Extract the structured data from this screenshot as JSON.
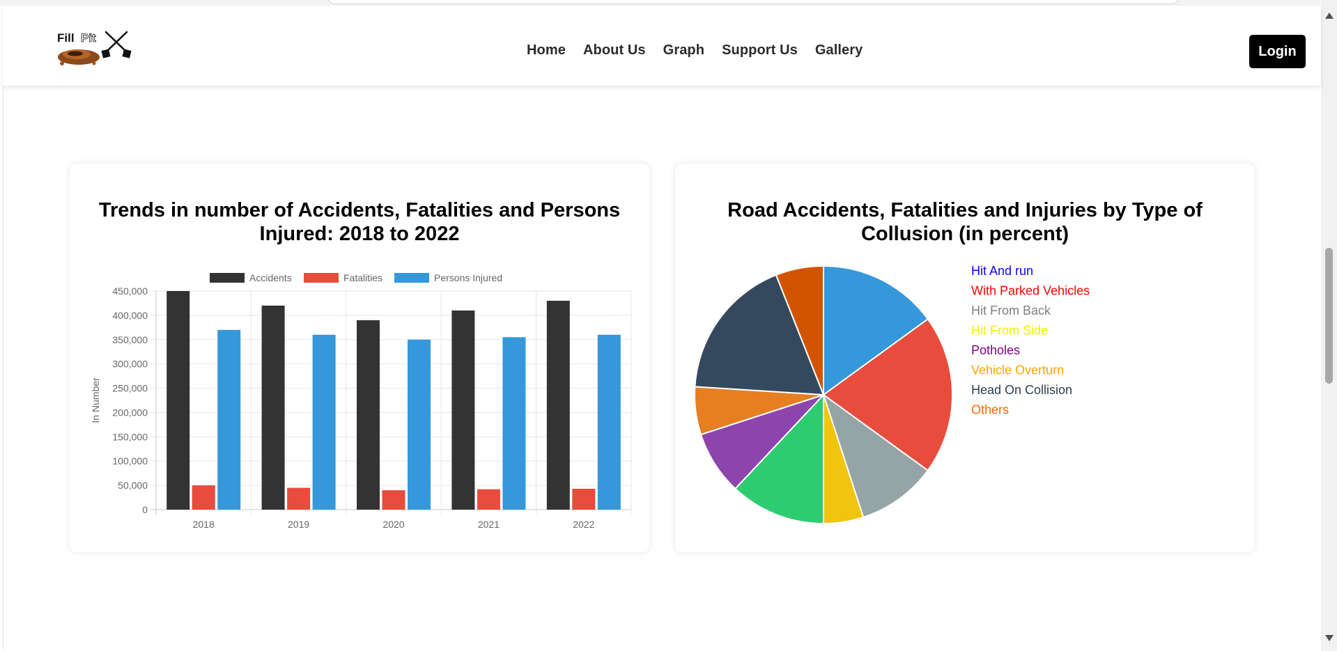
{
  "brand": {
    "logo_alt": "Fill Pit logo",
    "logo_text": "Fill Pit"
  },
  "nav": {
    "items": [
      "Home",
      "About Us",
      "Graph",
      "Support Us",
      "Gallery"
    ],
    "login_label": "Login"
  },
  "colors": {
    "accidents": "#333333",
    "fatalities": "#e74c3c",
    "injured": "#3498db",
    "pie": [
      "#3498db",
      "#e74c3c",
      "#95a5a6",
      "#f1c40f",
      "#2ecc71",
      "#8e44ad",
      "#e67e22",
      "#34495e",
      "#d35400"
    ],
    "pie_legend": [
      "#0b00ff",
      "#ff0000",
      "#808080",
      "#f0f000",
      "#800080",
      "#ffa500",
      "#2c3e50",
      "#ff6600"
    ]
  },
  "chart_data": [
    {
      "type": "bar",
      "title": "Trends in number of Accidents, Fatalities and Persons Injured: 2018 to 2022",
      "categories": [
        "2018",
        "2019",
        "2020",
        "2021",
        "2022"
      ],
      "series": [
        {
          "name": "Accidents",
          "values": [
            450000,
            420000,
            390000,
            410000,
            430000
          ]
        },
        {
          "name": "Fatalities",
          "values": [
            50000,
            45000,
            40000,
            42000,
            43000
          ]
        },
        {
          "name": "Persons Injured",
          "values": [
            370000,
            360000,
            350000,
            355000,
            360000
          ]
        }
      ],
      "ylabel": "In Number",
      "xlabel": "",
      "ylim": [
        0,
        450000
      ],
      "yticks": [
        "0",
        "50,000",
        "100,000",
        "150,000",
        "200,000",
        "250,000",
        "300,000",
        "350,000",
        "400,000",
        "450,000"
      ],
      "legend_position": "top",
      "grid": true
    },
    {
      "type": "pie",
      "title": "Road Accidents, Fatalities and Injuries by Type of Collusion (in percent)",
      "slices": [
        {
          "label": "Hit And run",
          "value": 15
        },
        {
          "label": "With Parked Vehicles",
          "value": 20
        },
        {
          "label": "Hit From Back",
          "value": 10
        },
        {
          "label": "Hit From Side",
          "value": 5
        },
        {
          "label": "Potholes",
          "value": 12
        },
        {
          "label": "Vehicle Overturn",
          "value": 8
        },
        {
          "label": "Head On Collision",
          "value": 6
        },
        {
          "label": "Others",
          "value": 18
        },
        {
          "label": "",
          "value": 6
        }
      ],
      "legend": [
        "Hit And run",
        "With Parked Vehicles",
        "Hit From Back",
        "Hit From Side",
        "Potholes",
        "Vehicle Overturn",
        "Head On Collision",
        "Others"
      ],
      "legend_position": "right"
    }
  ]
}
